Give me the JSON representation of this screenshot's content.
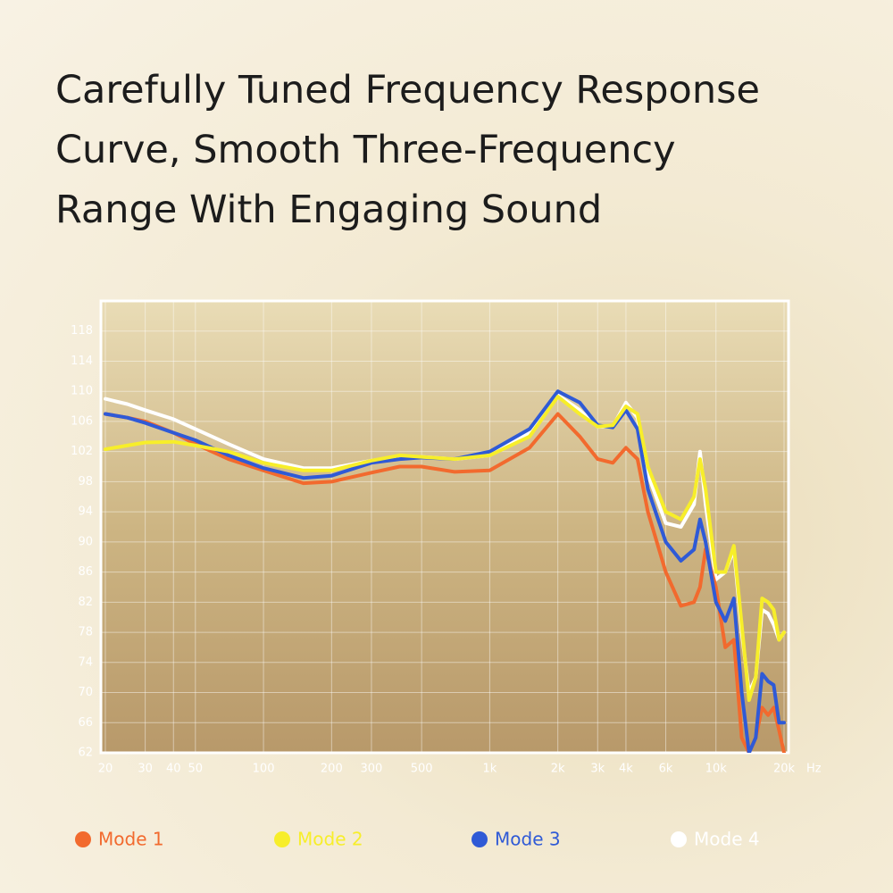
{
  "chart_data": {
    "type": "line",
    "title": [
      "Carefully Tuned Frequency Response",
      "Curve, Smooth Three-Frequency",
      "Range With Engaging Sound"
    ],
    "x_label": "Hz",
    "log_x": true,
    "grid": true,
    "xlim": [
      20,
      20000
    ],
    "ylim": [
      62,
      122
    ],
    "xticks": [
      20,
      30,
      40,
      50,
      100,
      200,
      300,
      500,
      {
        "value": 1000,
        "label": "1k"
      },
      {
        "value": 2000,
        "label": "2k"
      },
      {
        "value": 3000,
        "label": "3k"
      },
      {
        "value": 4000,
        "label": "4k"
      },
      {
        "value": 6000,
        "label": "6k"
      },
      {
        "value": 10000,
        "label": "10k"
      },
      {
        "value": 20000,
        "label": "20k"
      }
    ],
    "yticks": [
      62,
      66,
      70,
      74,
      78,
      82,
      86,
      90,
      94,
      98,
      102,
      106,
      110,
      114,
      118
    ],
    "x": [
      20,
      25,
      30,
      40,
      50,
      70,
      100,
      150,
      200,
      300,
      400,
      500,
      700,
      1000,
      1500,
      2000,
      2500,
      3000,
      3500,
      4000,
      4500,
      5000,
      6000,
      7000,
      8000,
      8500,
      9000,
      10000,
      11000,
      12000,
      13000,
      14000,
      15000,
      16000,
      17000,
      18000,
      19000,
      20000
    ],
    "series": [
      {
        "name": "Mode 1",
        "color": "#f26a2e",
        "values": [
          107,
          106.5,
          106,
          104.5,
          103,
          101,
          99.5,
          97.8,
          98,
          99.2,
          100,
          100,
          99.3,
          99.5,
          102.5,
          107,
          104,
          101,
          100.5,
          102.5,
          101,
          94,
          86,
          81.5,
          82,
          84,
          89,
          84,
          76,
          77,
          64,
          62,
          64,
          68,
          67,
          68,
          65,
          62
        ]
      },
      {
        "name": "Mode 2",
        "color": "#f7ee2a",
        "values": [
          102.3,
          102.8,
          103.2,
          103.3,
          102.8,
          102,
          100.5,
          99.5,
          99.5,
          100.8,
          101.5,
          101.3,
          101,
          101.5,
          104,
          109.3,
          107,
          105.3,
          105.5,
          108,
          107,
          100,
          94,
          93,
          96,
          101,
          97,
          86,
          86,
          89.5,
          79,
          69,
          72,
          82.5,
          82,
          81,
          77,
          78
        ]
      },
      {
        "name": "Mode 3",
        "color": "#2f5ad6",
        "values": [
          107,
          106.5,
          105.8,
          104.5,
          103.5,
          101.5,
          99.8,
          98.5,
          98.8,
          100.5,
          101,
          101.2,
          101,
          102,
          105,
          110,
          108.5,
          105.5,
          105.2,
          107.5,
          105,
          97,
          90,
          87.5,
          89,
          93,
          90,
          82,
          79.5,
          82.5,
          70,
          62,
          64,
          72.5,
          71.5,
          71,
          66,
          66
        ]
      },
      {
        "name": "Mode 4",
        "color": "#ffffff",
        "values": [
          109,
          108.3,
          107.5,
          106.3,
          105,
          103,
          101,
          99.8,
          99.8,
          100.8,
          101.3,
          101.3,
          101,
          101.5,
          104.5,
          109.5,
          107.5,
          105.3,
          105.3,
          108.5,
          106.5,
          99,
          92.5,
          92,
          95,
          102,
          95,
          85,
          86,
          89,
          78,
          70,
          72,
          81,
          80.5,
          79,
          77,
          78
        ]
      }
    ]
  }
}
